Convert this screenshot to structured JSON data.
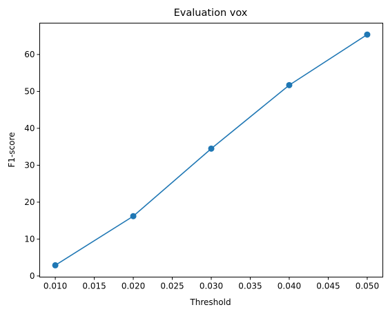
{
  "chart_data": {
    "type": "line",
    "title": "Evaluation vox",
    "xlabel": "Threshold",
    "ylabel": "F1-score",
    "xlim": [
      0.008,
      0.052
    ],
    "ylim": [
      -0.3,
      68.5
    ],
    "xticks": [
      0.01,
      0.015,
      0.02,
      0.025,
      0.03,
      0.035,
      0.04,
      0.045,
      0.05
    ],
    "xtick_labels": [
      "0.010",
      "0.015",
      "0.020",
      "0.025",
      "0.030",
      "0.035",
      "0.040",
      "0.045",
      "0.050"
    ],
    "yticks": [
      0,
      10,
      20,
      30,
      40,
      50,
      60
    ],
    "ytick_labels": [
      "0",
      "10",
      "20",
      "30",
      "40",
      "50",
      "60"
    ],
    "grid": false,
    "series": [
      {
        "color": "#1f77b4",
        "marker": "circle",
        "x": [
          0.01,
          0.02,
          0.03,
          0.04,
          0.05
        ],
        "y": [
          2.9,
          16.2,
          34.5,
          51.7,
          65.4
        ]
      }
    ]
  }
}
